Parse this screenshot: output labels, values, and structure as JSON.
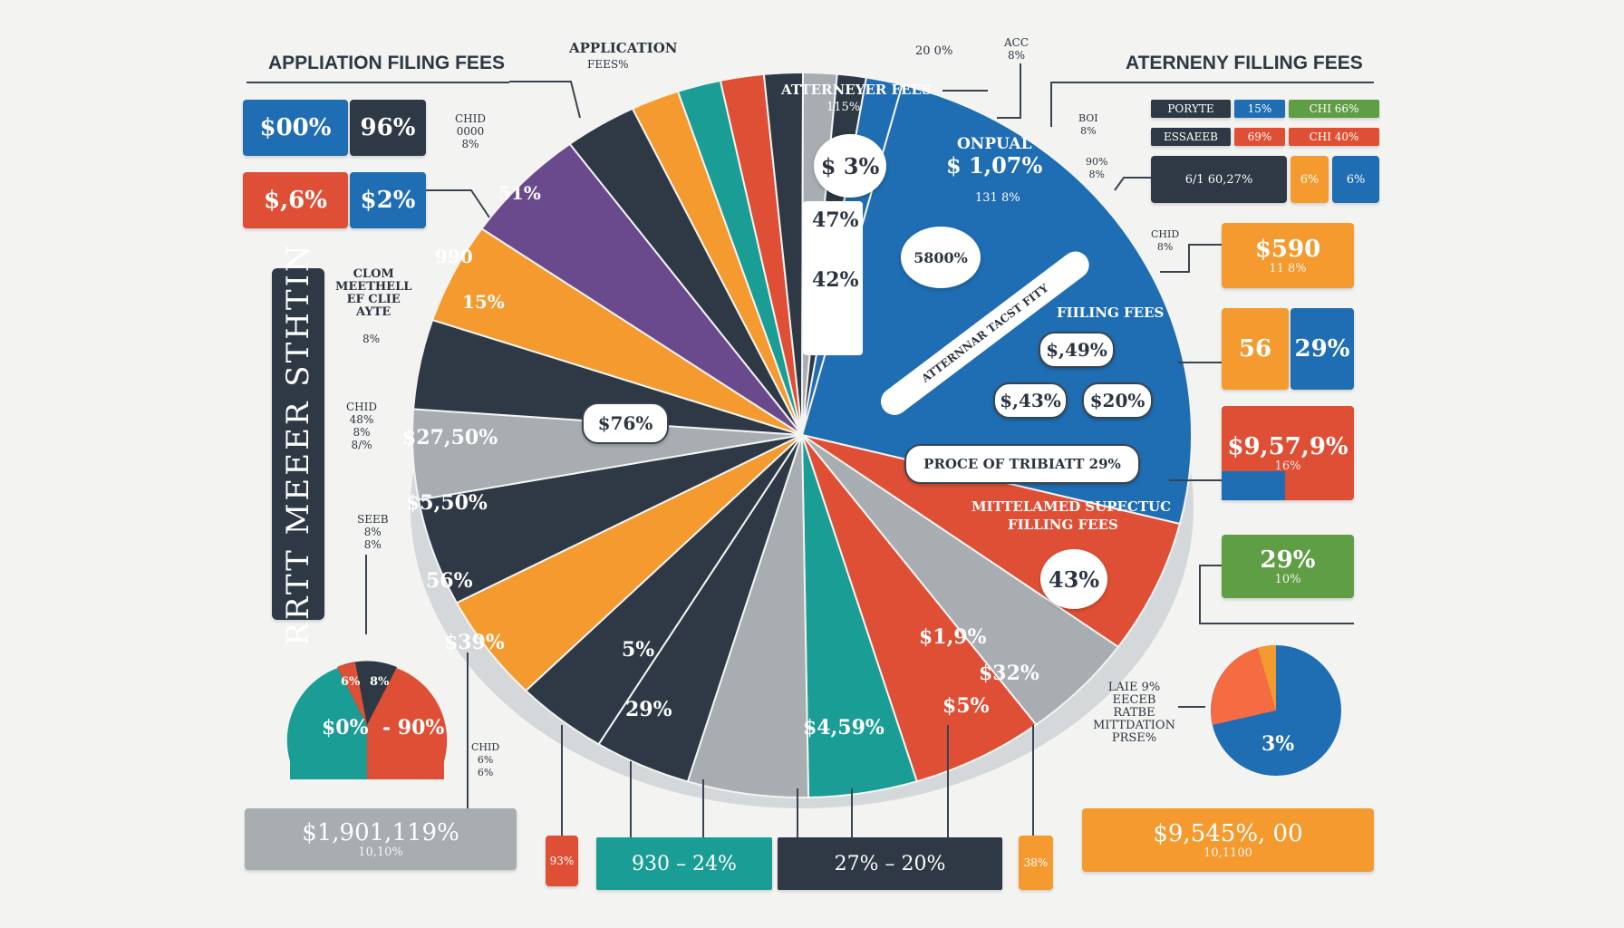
{
  "chart_data": {
    "type": "pie",
    "slices": [
      {
        "color": "#1f6db2",
        "fraction": 0.248
      },
      {
        "color": "#de4f35",
        "fraction": 0.06
      },
      {
        "color": "#a7adb1",
        "fraction": 0.048
      },
      {
        "color": "#de4f35",
        "fraction": 0.055
      },
      {
        "color": "#1a9d95",
        "fraction": 0.045
      },
      {
        "color": "#a7adb1",
        "fraction": 0.05
      },
      {
        "color": "#2e3945",
        "fraction": 0.04
      },
      {
        "color": "#2e3945",
        "fraction": 0.038
      },
      {
        "color": "#f49a2e",
        "fraction": 0.048
      },
      {
        "color": "#2e3945",
        "fraction": 0.048
      },
      {
        "color": "#a7adb1",
        "fraction": 0.04
      },
      {
        "color": "#2e3945",
        "fraction": 0.04
      },
      {
        "color": "#f49a2e",
        "fraction": 0.045
      },
      {
        "color": "#6a4a8c",
        "fraction": 0.052
      },
      {
        "color": "#2e3945",
        "fraction": 0.03
      },
      {
        "color": "#f49a2e",
        "fraction": 0.02
      },
      {
        "color": "#1a9d95",
        "fraction": 0.018
      },
      {
        "color": "#de4f35",
        "fraction": 0.018
      },
      {
        "color": "#2e3945",
        "fraction": 0.016
      },
      {
        "color": "#a7adb1",
        "fraction": 0.014
      },
      {
        "color": "#2e3945",
        "fraction": 0.012
      },
      {
        "color": "#1f6db2",
        "fraction": 0.015
      }
    ],
    "segment_labels": [
      {
        "text": "51%"
      },
      {
        "text": "990"
      },
      {
        "text": "15%"
      },
      {
        "text": "$27,50%"
      },
      {
        "text": "$5,50%"
      },
      {
        "text": "56%"
      },
      {
        "text": "$39%"
      },
      {
        "text": "5%"
      },
      {
        "text": "29%"
      },
      {
        "text": "$4,59%"
      },
      {
        "text": "$1,9%"
      },
      {
        "text": "$5%"
      },
      {
        "text": "$32%"
      }
    ],
    "callouts": {
      "attorney_fees": "ATTERNEYER FEES",
      "attorney_fees_sub": "115%",
      "c1": "$ 3%",
      "c2": "47%",
      "c3": "42%",
      "onpual": "ONPUAL",
      "onpual_val": "$ 1,07%",
      "onpual_sub": "131 8%",
      "c4": "5800%",
      "filling_fees": "FIILING FEES",
      "p1": "$,49%",
      "p2": "$,43%",
      "p3": "$20%",
      "bar_text": "ATTERNNAR TACST FITY",
      "proce": "PROCE OF TRIBIATT 29%",
      "mitt": "MITTELAMED SUPECTUC",
      "mitt2": "FILLING FEES",
      "c5": "43%",
      "p76": "$76%"
    }
  },
  "left": {
    "title": "APPLIATION FILING FEES",
    "b1a": "$00%",
    "b1b": "96%",
    "b2a": "$,6%",
    "b2b": "$2%",
    "vertical": "RRTT MEEER STHTIN",
    "clom": "CLOM\nMEETHELL\nEF CLIE\nAYTE",
    "clom_sub": "8%",
    "note1": "CHID\n0000\n8%",
    "note2": "CHID\n48%\n8%\n8/%",
    "note3": "SEEB\n8%\n8%",
    "mini_a": "$0%",
    "mini_b": "- 90%",
    "mini_c": "6%",
    "mini_d": "8%",
    "mini_note": "CHID\n6%\n6%",
    "bottom_big": "$1,901,119%",
    "bottom_sub": "10,10%"
  },
  "top": {
    "app": "APPLICATION",
    "app2": "FEES%",
    "pct": "20 0%",
    "pct2": "ACC\n8%"
  },
  "right": {
    "title": "ATERNENY FILLING FEES",
    "t1": "PORYTE",
    "t2": "15%",
    "t3": "CHI 66%",
    "t4": "ESSAEEB",
    "t5": "69%",
    "t6": "CHI 40%",
    "t7": "6/1 60,27%",
    "t8": "6%",
    "t9": "6%",
    "n1": "BOI\n8%",
    "n2": "90%\n8%",
    "n3": "CHID\n8%",
    "b1": "$590",
    "b1s": "11 8%",
    "b2a": "56",
    "b2b": "29%",
    "b3": "$9,57,9%",
    "b3s": "16%",
    "b4": "29%",
    "b4s": "10%",
    "mini": "3%",
    "lal": "LAIE 9%\nEECEB\nRATBE\nMITTDATION\nPRSE%",
    "bottom_big": "$9,545%, 00",
    "bottom_sub": "10,1100"
  },
  "bottom": {
    "l": "93%",
    "teal": "930 – 24%",
    "dark": "27% – 20%",
    "r": "38%"
  }
}
